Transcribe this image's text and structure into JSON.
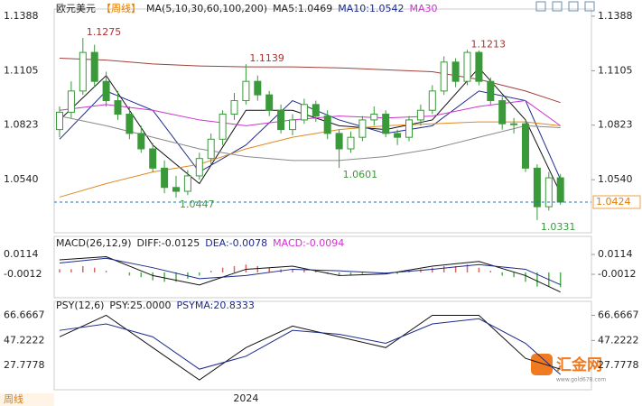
{
  "chart_data": {
    "type": "candlestick",
    "header": [
      {
        "text": "欧元美元",
        "color": "#222"
      },
      {
        "text": "【周线】",
        "color": "#e07b00"
      },
      {
        "text": "MA(5,10,30,60,100,200)",
        "color": "#222"
      },
      {
        "text": "MA5:1.0469",
        "color": "#222"
      },
      {
        "text": "MA10:1.0542",
        "color": "#1c2a8c"
      },
      {
        "text": "MA30",
        "color": "#cc33cc"
      }
    ],
    "categories": [
      null,
      null,
      null,
      null,
      null,
      null,
      null,
      null,
      null,
      null,
      null,
      null,
      null,
      null,
      null,
      null,
      "2024",
      null,
      null,
      null,
      null,
      null,
      null,
      null,
      null,
      null,
      null,
      null,
      null,
      null,
      null,
      null,
      null,
      null,
      null,
      null,
      null,
      null,
      null,
      null,
      null,
      null,
      null,
      null
    ],
    "candles": [
      [
        1.08,
        1.092,
        1.076,
        1.089
      ],
      [
        1.089,
        1.105,
        1.086,
        1.1
      ],
      [
        1.1,
        1.1275,
        1.098,
        1.12
      ],
      [
        1.12,
        1.124,
        1.102,
        1.105
      ],
      [
        1.105,
        1.11,
        1.092,
        1.095
      ],
      [
        1.095,
        1.1,
        1.085,
        1.088
      ],
      [
        1.088,
        1.092,
        1.075,
        1.078
      ],
      [
        1.078,
        1.082,
        1.068,
        1.07
      ],
      [
        1.07,
        1.073,
        1.058,
        1.06
      ],
      [
        1.06,
        1.064,
        1.047,
        1.05
      ],
      [
        1.05,
        1.056,
        1.0447,
        1.048
      ],
      [
        1.048,
        1.059,
        1.046,
        1.056
      ],
      [
        1.056,
        1.068,
        1.054,
        1.065
      ],
      [
        1.065,
        1.078,
        1.062,
        1.075
      ],
      [
        1.075,
        1.09,
        1.072,
        1.088
      ],
      [
        1.088,
        1.099,
        1.085,
        1.095
      ],
      [
        1.095,
        1.1139,
        1.093,
        1.105
      ],
      [
        1.105,
        1.108,
        1.095,
        1.098
      ],
      [
        1.098,
        1.1,
        1.087,
        1.09
      ],
      [
        1.09,
        1.093,
        1.078,
        1.08
      ],
      [
        1.08,
        1.088,
        1.077,
        1.085
      ],
      [
        1.085,
        1.096,
        1.083,
        1.093
      ],
      [
        1.093,
        1.095,
        1.084,
        1.087
      ],
      [
        1.087,
        1.09,
        1.075,
        1.078
      ],
      [
        1.078,
        1.08,
        1.0601,
        1.07
      ],
      [
        1.07,
        1.079,
        1.068,
        1.076
      ],
      [
        1.076,
        1.087,
        1.074,
        1.085
      ],
      [
        1.085,
        1.092,
        1.082,
        1.088
      ],
      [
        1.088,
        1.09,
        1.076,
        1.078
      ],
      [
        1.078,
        1.08,
        1.072,
        1.076
      ],
      [
        1.076,
        1.087,
        1.074,
        1.085
      ],
      [
        1.085,
        1.093,
        1.082,
        1.09
      ],
      [
        1.09,
        1.103,
        1.088,
        1.1
      ],
      [
        1.1,
        1.118,
        1.098,
        1.115
      ],
      [
        1.115,
        1.117,
        1.102,
        1.105
      ],
      [
        1.105,
        1.1213,
        1.103,
        1.12
      ],
      [
        1.12,
        1.121,
        1.103,
        1.105
      ],
      [
        1.105,
        1.107,
        1.093,
        1.095
      ],
      [
        1.095,
        1.097,
        1.08,
        1.083
      ],
      [
        1.083,
        1.086,
        1.078,
        1.083
      ],
      [
        1.083,
        1.085,
        1.058,
        1.06
      ],
      [
        1.06,
        1.062,
        1.0331,
        1.04
      ],
      [
        1.04,
        1.058,
        1.038,
        1.055
      ],
      [
        1.055,
        1.057,
        1.041,
        1.0424
      ]
    ],
    "up_color": "#3a9a3a",
    "down_color": "#3a9a3a",
    "ylim": [
      1.0265,
      1.1425
    ],
    "yticks": [
      1.1388,
      1.1105,
      1.0823,
      {
        "value": 1.054,
        "label": "1.0540"
      }
    ],
    "highs_marked": [
      1.1275,
      1.1139,
      1.1213
    ],
    "lows_marked": [
      1.0447,
      1.0601,
      1.0331
    ],
    "last_price": 1.0424,
    "ma_x": [
      0,
      4,
      8,
      12,
      16,
      20,
      24,
      28,
      32,
      36,
      40,
      43
    ],
    "ma": [
      {
        "color": "#111",
        "values": [
          1.085,
          1.108,
          1.072,
          1.052,
          1.09,
          1.09,
          1.082,
          1.08,
          1.085,
          1.112,
          1.085,
          1.047
        ]
      },
      {
        "color": "#1c2a8c",
        "values": [
          1.075,
          1.1,
          1.09,
          1.058,
          1.072,
          1.095,
          1.085,
          1.078,
          1.082,
          1.1,
          1.095,
          1.0542
        ]
      },
      {
        "color": "#cc33cc",
        "values": [
          1.09,
          1.093,
          1.09,
          1.085,
          1.082,
          1.085,
          1.087,
          1.086,
          1.087,
          1.092,
          1.095,
          1.082
        ]
      },
      {
        "color": "#e08a1e",
        "values": [
          1.045,
          1.052,
          1.058,
          1.062,
          1.07,
          1.076,
          1.08,
          1.082,
          1.083,
          1.084,
          1.084,
          1.082
        ]
      },
      {
        "color": "#8a8a8a",
        "values": [
          1.087,
          1.082,
          1.076,
          1.07,
          1.066,
          1.064,
          1.064,
          1.066,
          1.07,
          1.076,
          1.082,
          1.081
        ]
      },
      {
        "color": "#a0403a",
        "values": [
          1.117,
          1.116,
          1.114,
          1.113,
          1.1125,
          1.1125,
          1.112,
          1.111,
          1.11,
          1.106,
          1.1,
          1.094
        ]
      }
    ],
    "macd": {
      "header": [
        {
          "text": "MACD(26,12,9)",
          "color": "#222"
        },
        {
          "text": "DIFF:-0.0125",
          "color": "#222"
        },
        {
          "text": "DEA:-0.0078",
          "color": "#1c2a8c"
        },
        {
          "text": "MACD:-0.0094",
          "color": "#cc33cc"
        }
      ],
      "ylim": [
        -0.0161,
        0.0229
      ],
      "yticks": [
        0.0114,
        -0.0012
      ],
      "dif": {
        "color": "#111",
        "values": [
          0.008,
          0.01,
          -0.002,
          -0.008,
          0.002,
          0.004,
          -0.002,
          -0.001,
          0.004,
          0.007,
          -0.002,
          -0.0125
        ]
      },
      "dea": {
        "color": "#1c2a8c",
        "values": [
          0.006,
          0.009,
          0.003,
          -0.004,
          -0.002,
          0.002,
          0.001,
          -0.0005,
          0.002,
          0.005,
          0.002,
          -0.0078
        ]
      },
      "hist": [
        0.002,
        0.002,
        0.004,
        0.003,
        0.001,
        0,
        -0.002,
        -0.003,
        -0.005,
        -0.006,
        -0.006,
        -0.004,
        -0.002,
        0.001,
        0.003,
        0.004,
        0.005,
        0.004,
        0.003,
        0.002,
        0.002,
        0.002,
        0.001,
        -0.001,
        -0.002,
        -0.002,
        -0.001,
        0,
        -0.001,
        -0.001,
        0.001,
        0.002,
        0.003,
        0.004,
        0.004,
        0.005,
        0.003,
        0.001,
        -0.002,
        -0.003,
        -0.006,
        -0.009,
        -0.009,
        -0.0094
      ],
      "pos_color": "#e06060",
      "neg_color": "#4caf50"
    },
    "psy": {
      "header": [
        {
          "text": "PSY(12,6)",
          "color": "#222"
        },
        {
          "text": "PSY:25.0000",
          "color": "#222"
        },
        {
          "text": "PSYMA:20.8333",
          "color": "#1c2a8c"
        }
      ],
      "ylim": [
        9.06,
        77.47
      ],
      "yticks": [
        66.6667,
        47.2222,
        27.7778
      ],
      "psy": {
        "color": "#111",
        "values": [
          50,
          66.67,
          41.67,
          16.67,
          41.67,
          58.33,
          50,
          41.67,
          66.67,
          66.67,
          33.33,
          25
        ]
      },
      "psyma": {
        "color": "#1c2a8c",
        "values": [
          55,
          60,
          50,
          25,
          35,
          55,
          52,
          45,
          60,
          64,
          45,
          20.8333
        ]
      }
    },
    "footer": "周线",
    "watermark": "汇金网",
    "watermark_url": "www.gold678.com"
  }
}
